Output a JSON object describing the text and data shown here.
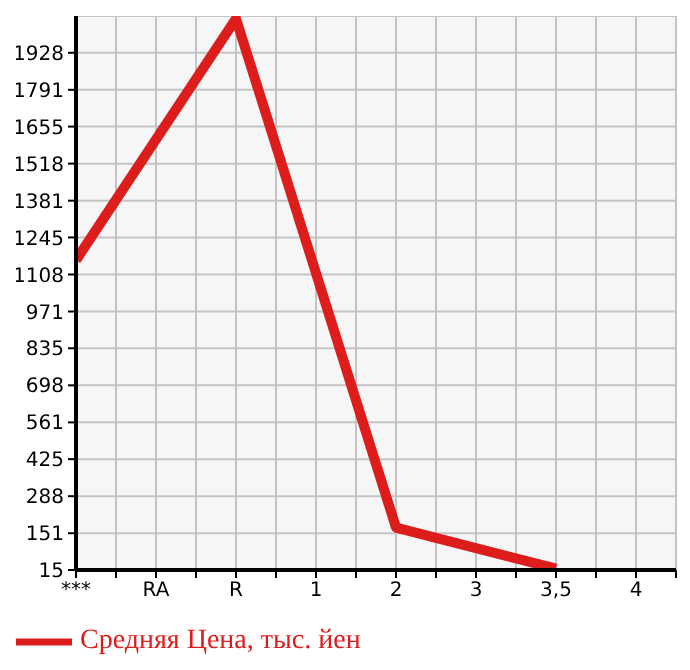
{
  "chart_data": {
    "type": "line",
    "categories": [
      "***",
      "RA",
      "R",
      "1",
      "2",
      "3",
      "3,5",
      "4"
    ],
    "series": [
      {
        "name": "Средняя Цена, тыс. йен",
        "color": "#dd1c1c",
        "values": [
          1161,
          null,
          2054,
          null,
          172,
          null,
          20,
          null
        ]
      }
    ],
    "ylim": [
      15,
      2064
    ],
    "yticks": [
      15,
      151,
      288,
      425,
      561,
      698,
      835,
      971,
      1108,
      1245,
      1381,
      1518,
      1655,
      1791,
      1928
    ],
    "grid": true,
    "legend": "bottom left",
    "marker": "none",
    "line_style": "solid"
  }
}
